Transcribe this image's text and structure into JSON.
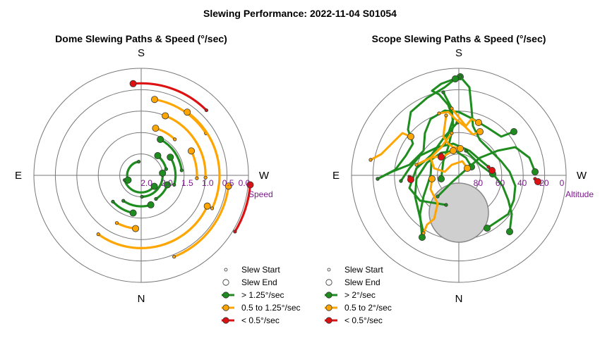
{
  "title": "Slewing Performance: 2022-11-04 S01054",
  "colors": {
    "fast": "#1e8c1e",
    "medium": "#ffa500",
    "slow": "#dd1111",
    "grid": "#777777",
    "ring_label": "#7a1b8a"
  },
  "chart_data": [
    {
      "type": "scatter",
      "title": "Dome Slewing Paths & Speed (°/sec)",
      "compass": {
        "top": "S",
        "bottom": "N",
        "left": "E",
        "right": "W"
      },
      "radial_axis_name": "Speed",
      "radial_ticks": [
        "2.0",
        "2.0",
        "1.5",
        "1.0",
        "0.5",
        "0.0"
      ],
      "legend": [
        {
          "label": "Slew Start",
          "kind": "start"
        },
        {
          "label": "Slew End",
          "kind": "end"
        },
        {
          "label": "> 1.25°/sec",
          "kind": "fast"
        },
        {
          "label": "0.5 to 1.25°/sec",
          "kind": "medium"
        },
        {
          "label": "< 0.5°/sec",
          "kind": "slow"
        }
      ],
      "paths": [
        {
          "speed": "slow",
          "r": 1.02,
          "a0": 95,
          "a1": 121
        },
        {
          "speed": "slow",
          "r": 0.86,
          "a0": 355,
          "a1": 45
        },
        {
          "speed": "medium",
          "r": 0.72,
          "a0": 10,
          "a1": 57
        },
        {
          "speed": "medium",
          "r": 0.68,
          "a0": 115,
          "a1": 216
        },
        {
          "speed": "medium",
          "r": 0.82,
          "a0": 97,
          "a1": 158
        },
        {
          "speed": "medium",
          "r": 0.73,
          "a0": 36,
          "a1": 115
        },
        {
          "speed": "medium",
          "r": 0.6,
          "a0": 22,
          "a1": 92
        },
        {
          "speed": "medium",
          "r": 0.52,
          "a0": 64,
          "a1": 93
        },
        {
          "speed": "medium",
          "r": 0.5,
          "a0": 186,
          "a1": 207
        },
        {
          "speed": "medium",
          "r": 0.46,
          "a0": 17,
          "a1": 43
        },
        {
          "speed": "fast",
          "r": 0.38,
          "a0": 28,
          "a1": 83
        },
        {
          "speed": "fast",
          "r": 0.32,
          "a0": 58,
          "a1": 106
        },
        {
          "speed": "fast",
          "r": 0.29,
          "a0": 162,
          "a1": 215
        },
        {
          "speed": "fast",
          "r": 0.26,
          "a0": 110,
          "a1": 148
        },
        {
          "speed": "fast",
          "r": 0.2,
          "a0": 84,
          "a1": 178
        },
        {
          "speed": "fast",
          "r": 0.16,
          "a0": 130,
          "a1": 254
        },
        {
          "speed": "fast",
          "r": 0.13,
          "a0": 250,
          "a1": 350
        },
        {
          "speed": "fast",
          "r": 0.36,
          "a0": 192,
          "a1": 227
        },
        {
          "speed": "fast",
          "r": 0.24,
          "a0": 40,
          "a1": 76
        }
      ]
    },
    {
      "type": "scatter",
      "title": "Scope Slewing Paths & Speed (°/sec)",
      "compass": {
        "top": "S",
        "bottom": "N",
        "left": "E",
        "right": "W"
      },
      "radial_axis_name": "Altitude",
      "radial_ticks": [
        "80",
        "60",
        "40",
        "20",
        "0"
      ],
      "legend": [
        {
          "label": "Slew Start",
          "kind": "start"
        },
        {
          "label": "Slew End",
          "kind": "end"
        },
        {
          "label": "> 2°/sec",
          "kind": "fast"
        },
        {
          "label": "0.5 to 2°/sec",
          "kind": "medium"
        },
        {
          "label": "< 0.5°/sec",
          "kind": "slow"
        }
      ],
      "paths": [
        {
          "speed": "fast",
          "pts": [
            [
              -18,
              42
            ],
            [
              -55,
              36
            ],
            [
              -70,
              18
            ],
            [
              -60,
              -10
            ],
            [
              -40,
              -28
            ],
            [
              -20,
              -44
            ],
            [
              -8,
              -80
            ],
            [
              -15,
              -100
            ],
            [
              -28,
              -115
            ],
            [
              -38,
              -120
            ],
            [
              -25,
              -130
            ],
            [
              2,
              -140
            ]
          ]
        },
        {
          "speed": "fast",
          "pts": [
            [
              2,
              -140
            ],
            [
              15,
              -125
            ],
            [
              18,
              -95
            ],
            [
              20,
              -70
            ],
            [
              30,
              -50
            ],
            [
              45,
              -35
            ],
            [
              60,
              -20
            ],
            [
              72,
              -5
            ],
            [
              80,
              15
            ],
            [
              78,
              35
            ],
            [
              70,
              55
            ],
            [
              55,
              65
            ],
            [
              40,
              75
            ]
          ]
        },
        {
          "speed": "fast",
          "pts": [
            [
              -115,
              5
            ],
            [
              -95,
              -5
            ],
            [
              -70,
              -15
            ],
            [
              -50,
              -35
            ],
            [
              -48,
              -60
            ],
            [
              -40,
              -80
            ],
            [
              -20,
              -92
            ],
            [
              0,
              -90
            ],
            [
              20,
              -80
            ],
            [
              40,
              -68
            ],
            [
              60,
              -55
            ],
            [
              78,
              -62
            ]
          ]
        },
        {
          "speed": "fast",
          "pts": [
            [
              -82,
              8
            ],
            [
              -70,
              -10
            ],
            [
              -55,
              -28
            ],
            [
              -30,
              -40
            ],
            [
              -8,
              -45
            ],
            [
              15,
              -35
            ],
            [
              30,
              -22
            ],
            [
              42,
              -12
            ],
            [
              48,
              -2
            ]
          ]
        },
        {
          "speed": "fast",
          "pts": [
            [
              -50,
              82
            ],
            [
              -55,
              60
            ],
            [
              -62,
              30
            ],
            [
              -60,
              5
            ],
            [
              -45,
              -18
            ],
            [
              -25,
              -32
            ],
            [
              -5,
              -35
            ],
            [
              10,
              -25
            ],
            [
              18,
              -12
            ]
          ]
        },
        {
          "speed": "fast",
          "pts": [
            [
              -30,
              30
            ],
            [
              -20,
              20
            ],
            [
              -10,
              10
            ],
            [
              10,
              -8
            ],
            [
              30,
              -25
            ],
            [
              55,
              -35
            ],
            [
              80,
              -40
            ],
            [
              100,
              -25
            ],
            [
              108,
              -5
            ]
          ]
        },
        {
          "speed": "fast",
          "pts": [
            [
              -115,
              5
            ],
            [
              -90,
              -8
            ],
            [
              -75,
              -28
            ],
            [
              -65,
              -45
            ],
            [
              -72,
              -65
            ],
            [
              -68,
              -90
            ],
            [
              -45,
              -110
            ],
            [
              -20,
              -125
            ],
            [
              -5,
              -137
            ]
          ]
        },
        {
          "speed": "fast",
          "pts": [
            [
              -22,
              -118
            ],
            [
              -10,
              -95
            ],
            [
              -8,
              -70
            ],
            [
              -15,
              -40
            ],
            [
              -22,
              -20
            ],
            [
              -25,
              5
            ]
          ]
        },
        {
          "speed": "fast",
          "pts": [
            [
              -2,
              -75
            ],
            [
              -20,
              -55
            ],
            [
              -38,
              -30
            ],
            [
              -40,
              0
            ],
            [
              -50,
              30
            ],
            [
              -55,
              55
            ],
            [
              -52,
              88
            ]
          ]
        },
        {
          "speed": "fast",
          "pts": [
            [
              10,
              -35
            ],
            [
              30,
              -15
            ],
            [
              50,
              0
            ],
            [
              62,
              15
            ],
            [
              70,
              35
            ],
            [
              75,
              55
            ],
            [
              72,
              80
            ]
          ]
        },
        {
          "speed": "medium",
          "pts": [
            [
              -125,
              -22
            ],
            [
              -110,
              -30
            ],
            [
              -90,
              -50
            ],
            [
              -80,
              -60
            ],
            [
              -68,
              -55
            ]
          ]
        },
        {
          "speed": "medium",
          "pts": [
            [
              -28,
              -88
            ],
            [
              -15,
              -90
            ],
            [
              -5,
              -80
            ],
            [
              8,
              -70
            ],
            [
              20,
              -58
            ],
            [
              30,
              -62
            ]
          ]
        },
        {
          "speed": "medium",
          "pts": [
            [
              -10,
              -60
            ],
            [
              -25,
              -40
            ],
            [
              -40,
              -25
            ],
            [
              -35,
              -10
            ],
            [
              -20,
              -5
            ],
            [
              -10,
              -15
            ],
            [
              5,
              -20
            ],
            [
              12,
              -10
            ]
          ]
        },
        {
          "speed": "medium",
          "pts": [
            [
              -18,
              -85
            ],
            [
              -20,
              -70
            ],
            [
              -22,
              -55
            ],
            [
              -15,
              -45
            ],
            [
              -8,
              -40
            ],
            [
              2,
              -38
            ]
          ]
        },
        {
          "speed": "medium",
          "pts": [
            [
              -50,
              82
            ],
            [
              -45,
              70
            ],
            [
              -35,
              62
            ],
            [
              -30,
              40
            ],
            [
              -40,
              20
            ],
            [
              -38,
              5
            ]
          ]
        },
        {
          "speed": "medium",
          "pts": [
            [
              -10,
              -95
            ],
            [
              2,
              -80
            ],
            [
              10,
              -70
            ],
            [
              18,
              -80
            ],
            [
              28,
              -75
            ]
          ]
        },
        {
          "speed": "medium",
          "pts": [
            [
              -60,
              -15
            ],
            [
              -40,
              -25
            ],
            [
              -20,
              -28
            ],
            [
              -8,
              -35
            ]
          ]
        },
        {
          "speed": "slow",
          "pts": [
            [
              -25,
              -30
            ],
            [
              -25,
              -26
            ]
          ]
        },
        {
          "speed": "slow",
          "pts": [
            [
              42,
              -12
            ],
            [
              47,
              -7
            ]
          ]
        },
        {
          "speed": "slow",
          "pts": [
            [
              108,
              5
            ],
            [
              112,
              9
            ]
          ]
        },
        {
          "speed": "slow",
          "pts": [
            [
              -70,
              2
            ],
            [
              -68,
              6
            ]
          ]
        }
      ],
      "zenith_blocked": true
    }
  ]
}
